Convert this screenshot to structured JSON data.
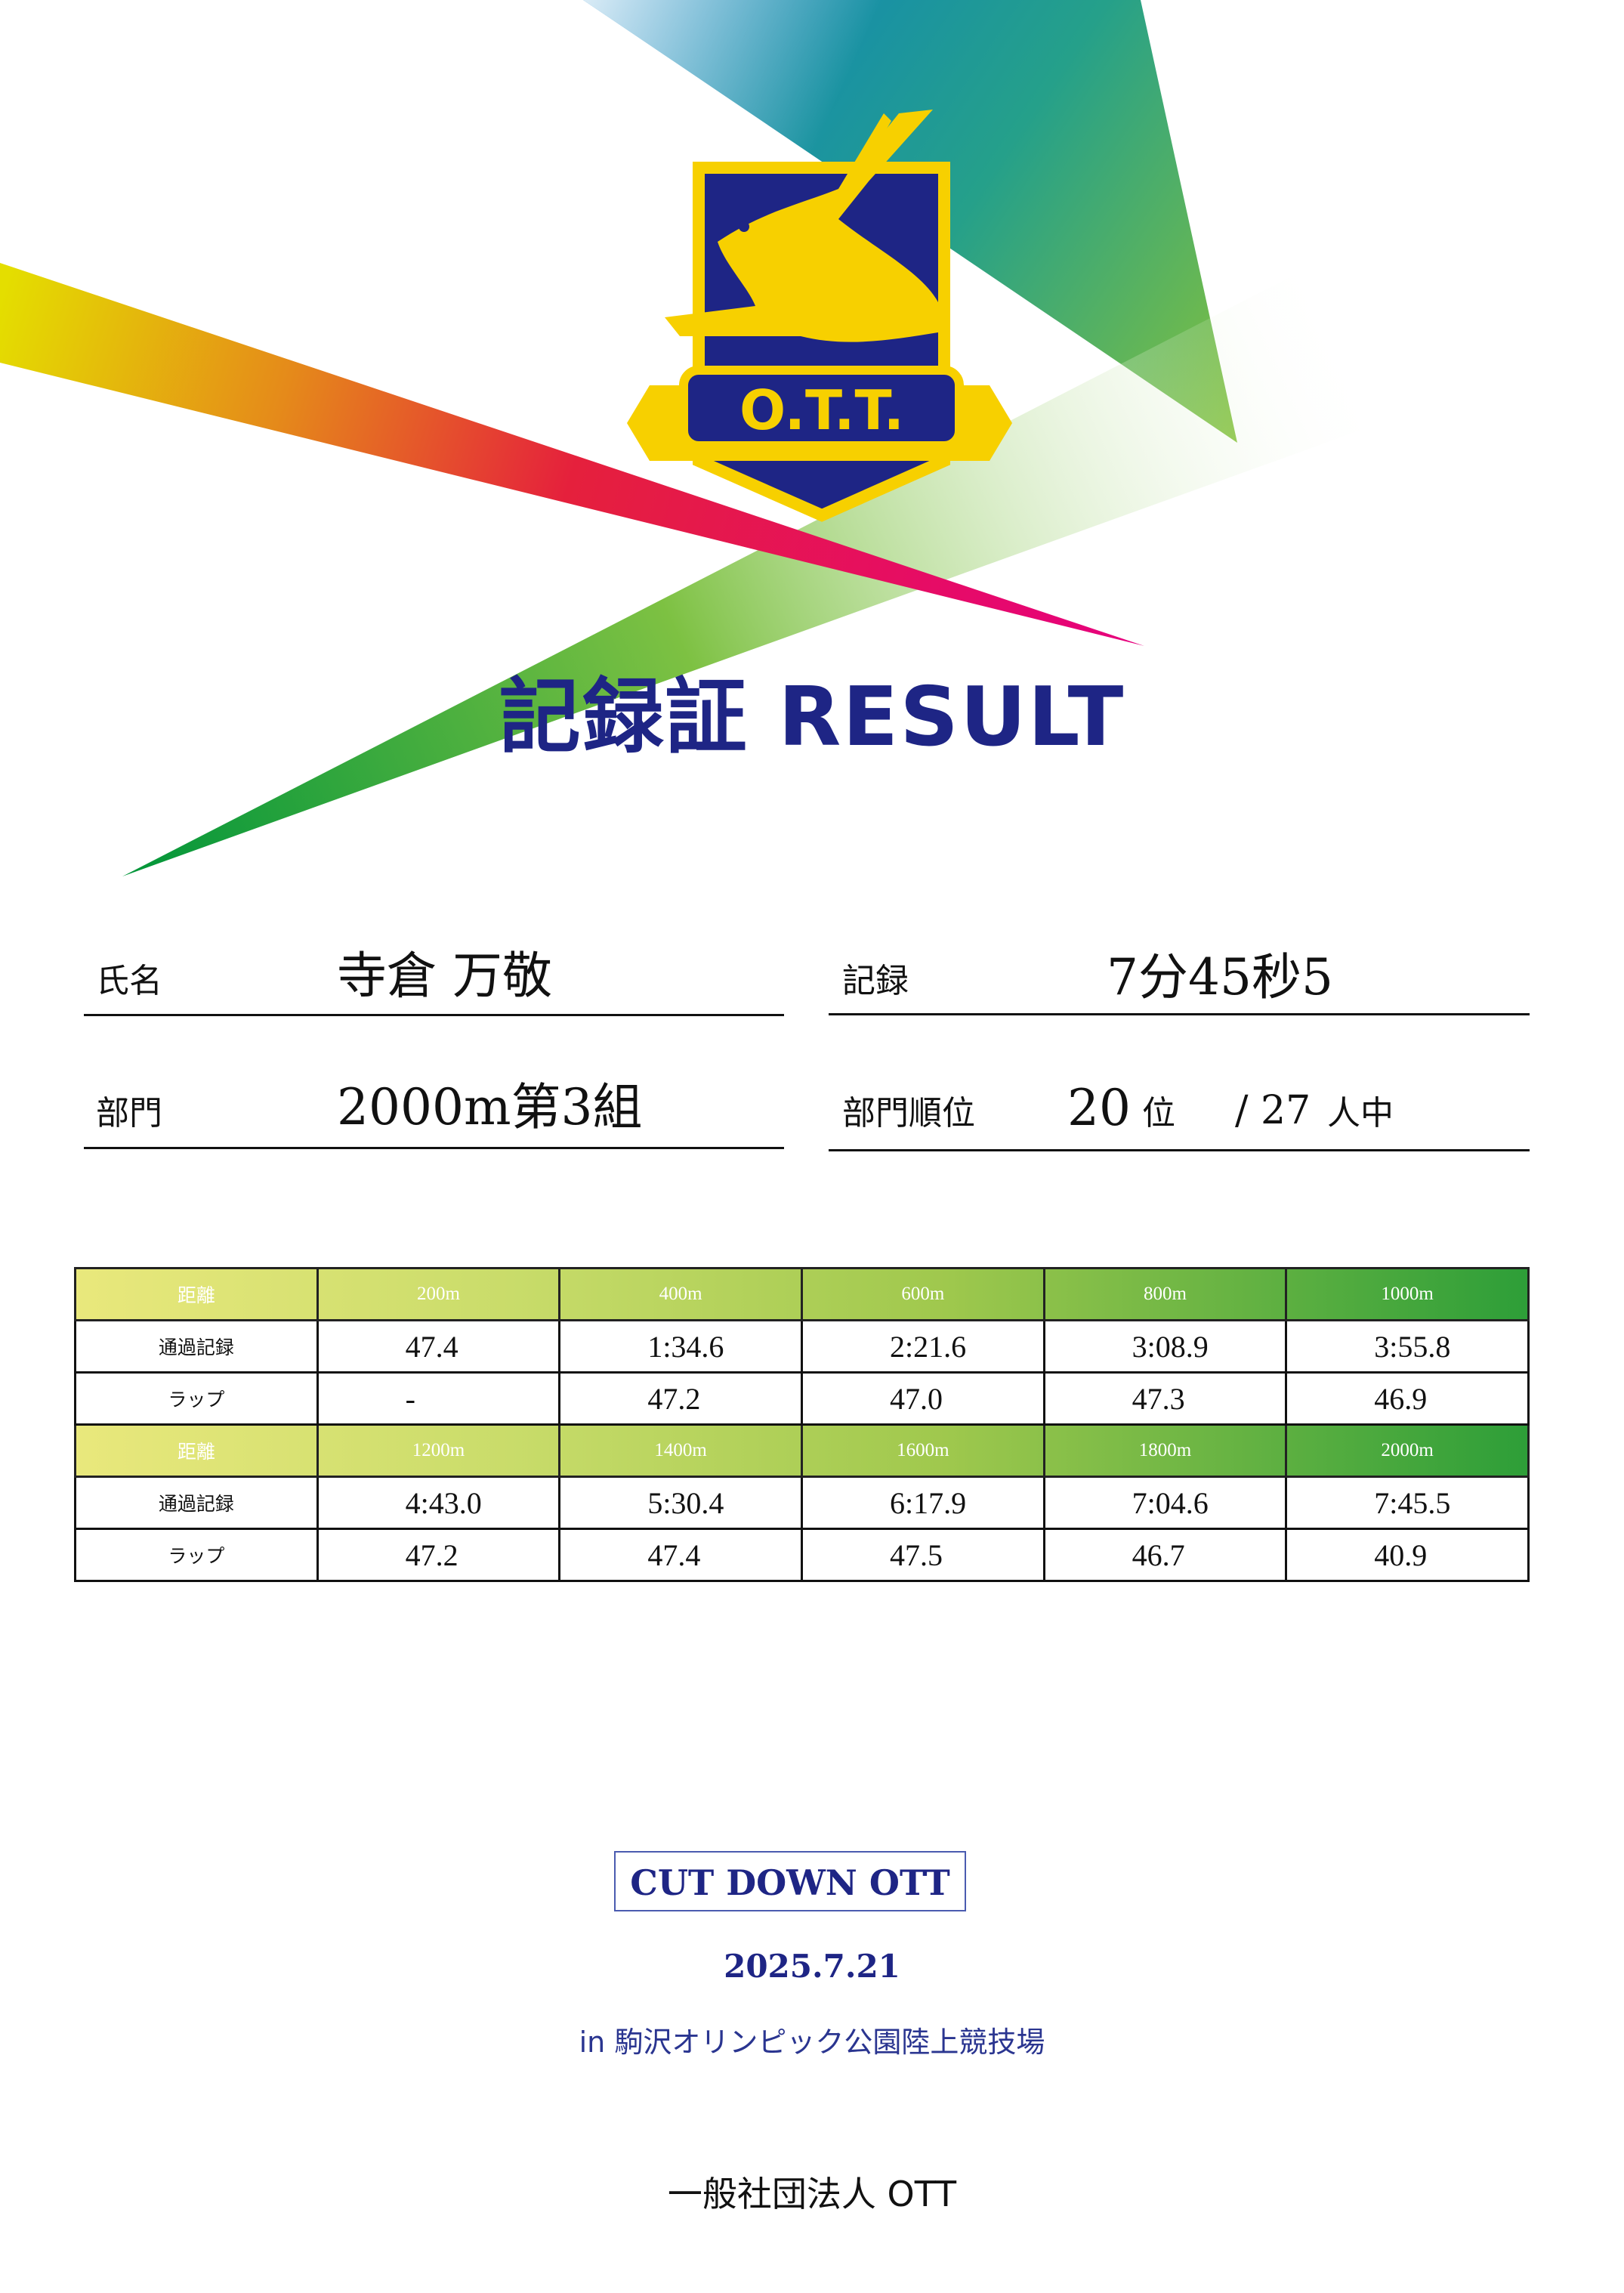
{
  "colors": {
    "navy": "#1e2585",
    "logo_yellow": "#f7d000",
    "header_gradient_start": "#e9e87c",
    "header_gradient_end": "#2d9e38"
  },
  "logo": {
    "text": "O.T.T.",
    "icon": "gazelle-shield-emblem"
  },
  "title": "記録証 RESULT",
  "info": {
    "name_label": "氏名",
    "name_value": "寺倉 万敬",
    "record_label": "記録",
    "record_value": "7分45秒5",
    "division_label": "部門",
    "division_value": "2000m第3組",
    "rank_label": "部門順位",
    "rank_value": "20",
    "rank_unit": "位",
    "total": "/ 27",
    "total_unit": "人中"
  },
  "splits": [
    {
      "header_label": "距離",
      "pass_label": "通過記録",
      "lap_label": "ラップ",
      "distances": [
        "200m",
        "400m",
        "600m",
        "800m",
        "1000m"
      ],
      "pass": [
        "47.4",
        "1:34.6",
        "2:21.6",
        "3:08.9",
        "3:55.8"
      ],
      "lap": [
        "-",
        "47.2",
        "47.0",
        "47.3",
        "46.9"
      ]
    },
    {
      "header_label": "距離",
      "pass_label": "通過記録",
      "lap_label": "ラップ",
      "distances": [
        "1200m",
        "1400m",
        "1600m",
        "1800m",
        "2000m"
      ],
      "pass": [
        "4:43.0",
        "5:30.4",
        "6:17.9",
        "7:04.6",
        "7:45.5"
      ],
      "lap": [
        "47.2",
        "47.4",
        "47.5",
        "46.7",
        "40.9"
      ]
    }
  ],
  "footer": {
    "event": "CUT DOWN OTT",
    "date": "2025.7.21",
    "venue": "in 駒沢オリンピック公園陸上競技場",
    "organizer": "一般社団法人 OTT"
  }
}
